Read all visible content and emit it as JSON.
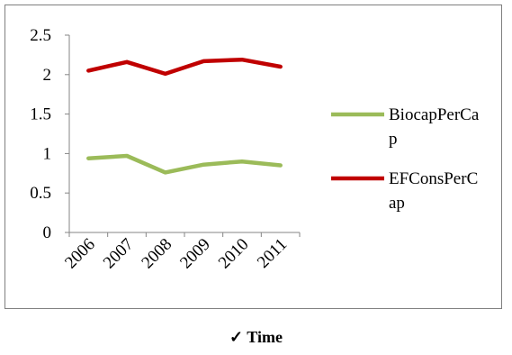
{
  "chart_data": {
    "type": "line",
    "categories": [
      "2006",
      "2007",
      "2008",
      "2009",
      "2010",
      "2011"
    ],
    "series": [
      {
        "name": "BiocapPerCap",
        "values": [
          0.94,
          0.97,
          0.76,
          0.86,
          0.9,
          0.85
        ],
        "color": "#9bbb59"
      },
      {
        "name": "EFConsPerCap",
        "values": [
          2.05,
          2.16,
          2.01,
          2.17,
          2.19,
          2.1
        ],
        "color": "#c00000"
      }
    ],
    "ylim": [
      0,
      2.5
    ],
    "yticks": [
      "0",
      "0.5",
      "1",
      "1.5",
      "2",
      "2.5"
    ],
    "legend_lines": [
      [
        "BiocapPerCa",
        "p"
      ],
      [
        "EFConsPerC",
        "ap"
      ]
    ],
    "legend_position": "right",
    "grid": false
  },
  "caption": {
    "check": "✓",
    "text": "Time"
  }
}
